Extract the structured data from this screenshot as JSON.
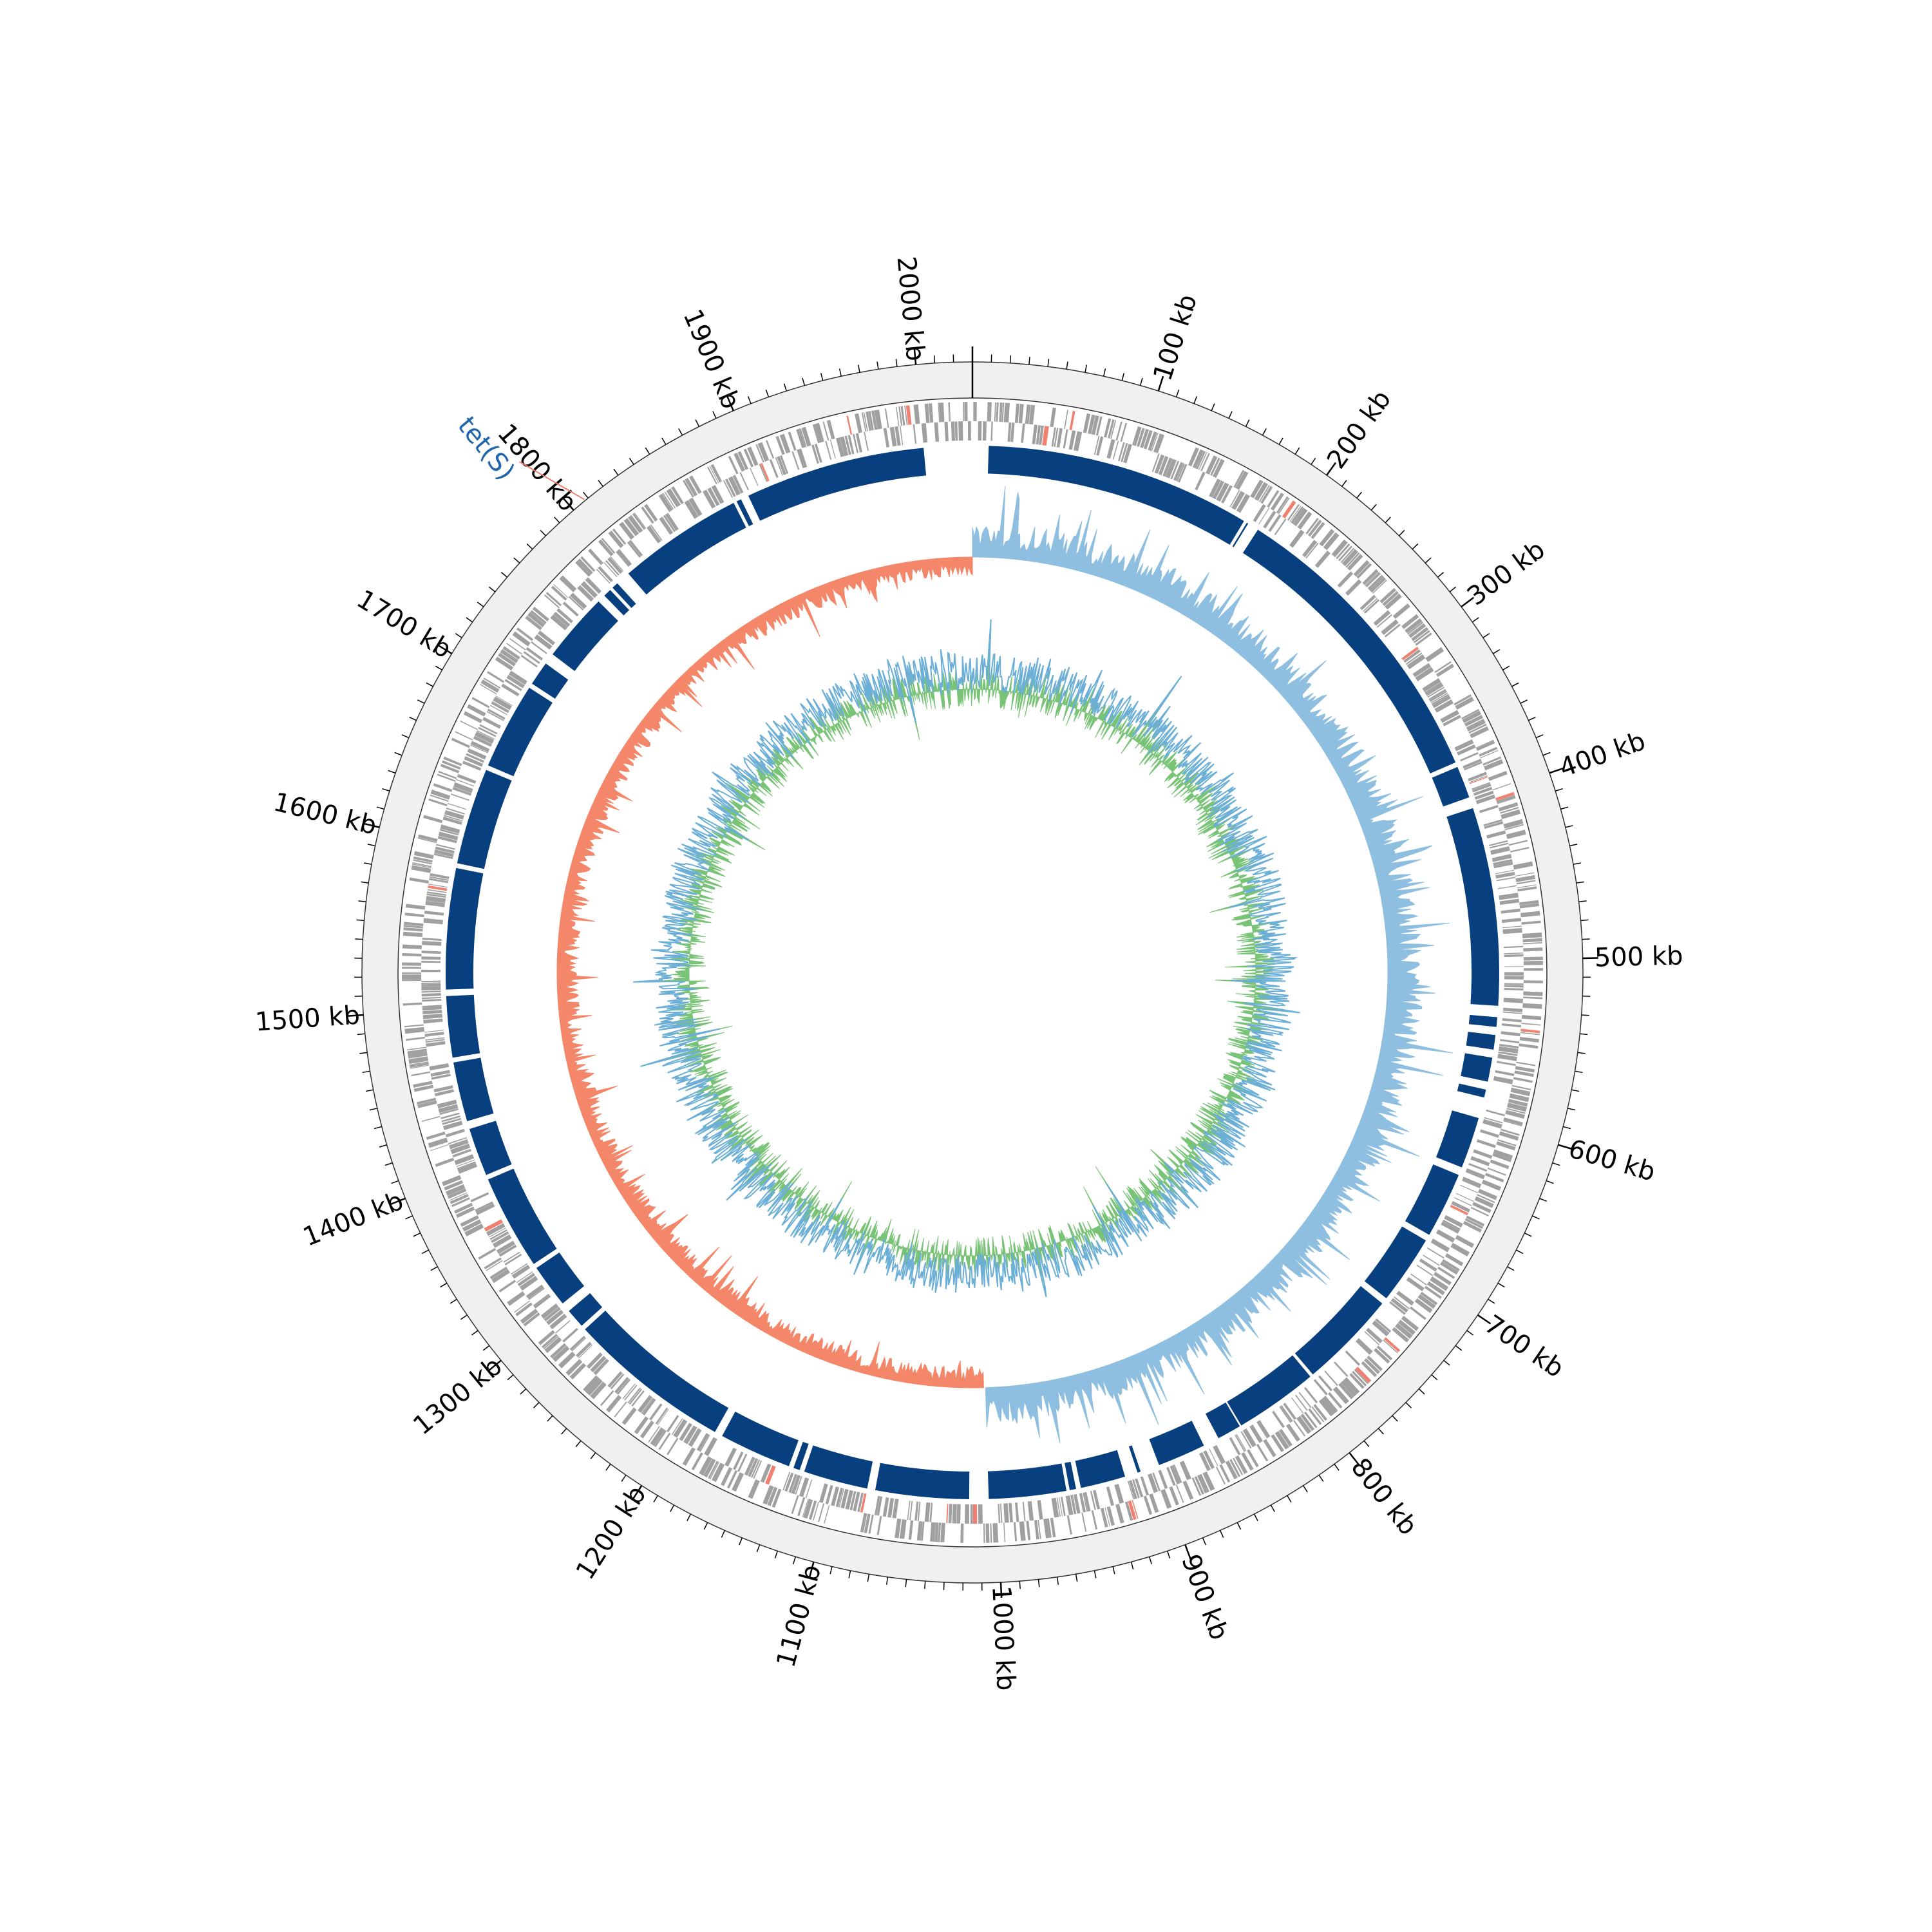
{
  "chart_data": {
    "type": "circular-genome-map",
    "genome_length_kb": 2030,
    "axis": {
      "unit": "kb",
      "tick_labels": [
        "100 kb",
        "200 kb",
        "300 kb",
        "400 kb",
        "500 kb",
        "600 kb",
        "700 kb",
        "800 kb",
        "900 kb",
        "1000 kb",
        "1100 kb",
        "1200 kb",
        "1300 kb",
        "1400 kb",
        "1500 kb",
        "1600 kb",
        "1700 kb",
        "1800 kb",
        "1900 kb",
        "2000 kb"
      ],
      "tick_values_kb": [
        100,
        200,
        300,
        400,
        500,
        600,
        700,
        800,
        900,
        1000,
        1100,
        1200,
        1300,
        1400,
        1500,
        1600,
        1700,
        1800,
        1900,
        2000
      ],
      "minor_tick_interval_kb": 10
    },
    "annotations": [
      {
        "label": "tet(S)",
        "position_kb": 1808
      }
    ],
    "blocks_kb": [
      [
        10,
        175
      ],
      [
        177,
        178
      ],
      [
        185,
        375
      ],
      [
        378,
        398
      ],
      [
        405,
        528
      ],
      [
        535,
        541
      ],
      [
        546,
        555
      ],
      [
        560,
        575
      ],
      [
        580,
        585
      ],
      [
        598,
        630
      ],
      [
        635,
        676
      ],
      [
        680,
        723
      ],
      [
        727,
        788
      ],
      [
        790,
        842
      ],
      [
        843,
        858
      ],
      [
        868,
        898
      ],
      [
        910,
        912
      ],
      [
        920,
        948
      ],
      [
        951,
        955
      ],
      [
        957,
        1005
      ],
      [
        1017,
        1075
      ],
      [
        1080,
        1120
      ],
      [
        1123,
        1127
      ],
      [
        1130,
        1175
      ],
      [
        1180,
        1282
      ],
      [
        1285,
        1297
      ],
      [
        1303,
        1330
      ],
      [
        1333,
        1392
      ],
      [
        1395,
        1425
      ],
      [
        1430,
        1467
      ],
      [
        1470,
        1508
      ],
      [
        1512,
        1587
      ],
      [
        1590,
        1650
      ],
      [
        1653,
        1707
      ],
      [
        1710,
        1725
      ],
      [
        1732,
        1775
      ],
      [
        1780,
        1785
      ],
      [
        1787,
        1791
      ],
      [
        1800,
        1878
      ],
      [
        1880,
        1883
      ],
      [
        1888,
        2000
      ]
    ],
    "colors": {
      "backbone_ring": "#f0f0f0",
      "feature_gray": "#a0a0a0",
      "feature_highlight": "#f08070",
      "block": "#08407f",
      "skew_positive": "#f4876a",
      "skew_negative": "#8ebfe0",
      "gc_content_fill": "#79c377",
      "gc_content_line": "#6baed6",
      "annotation_label": "#2166ac"
    }
  }
}
